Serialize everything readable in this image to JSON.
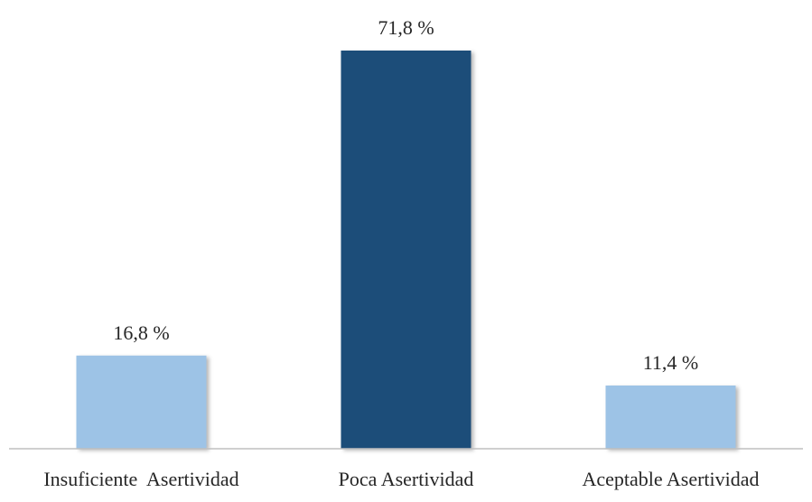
{
  "chart_data": {
    "type": "bar",
    "categories": [
      "Insuficiente  Asertividad",
      "Poca Asertividad",
      "Aceptable Asertividad"
    ],
    "values": [
      16.8,
      71.8,
      11.4
    ],
    "data_labels": [
      "16,8 %",
      "71,8 %",
      "11,4 %"
    ],
    "colors": [
      "#9dc3e6",
      "#1f4e79",
      "#9dc3e6"
    ],
    "axis_color": "#bfbfbf",
    "ylim": [
      0,
      80
    ],
    "grid": false,
    "legend": "none"
  }
}
